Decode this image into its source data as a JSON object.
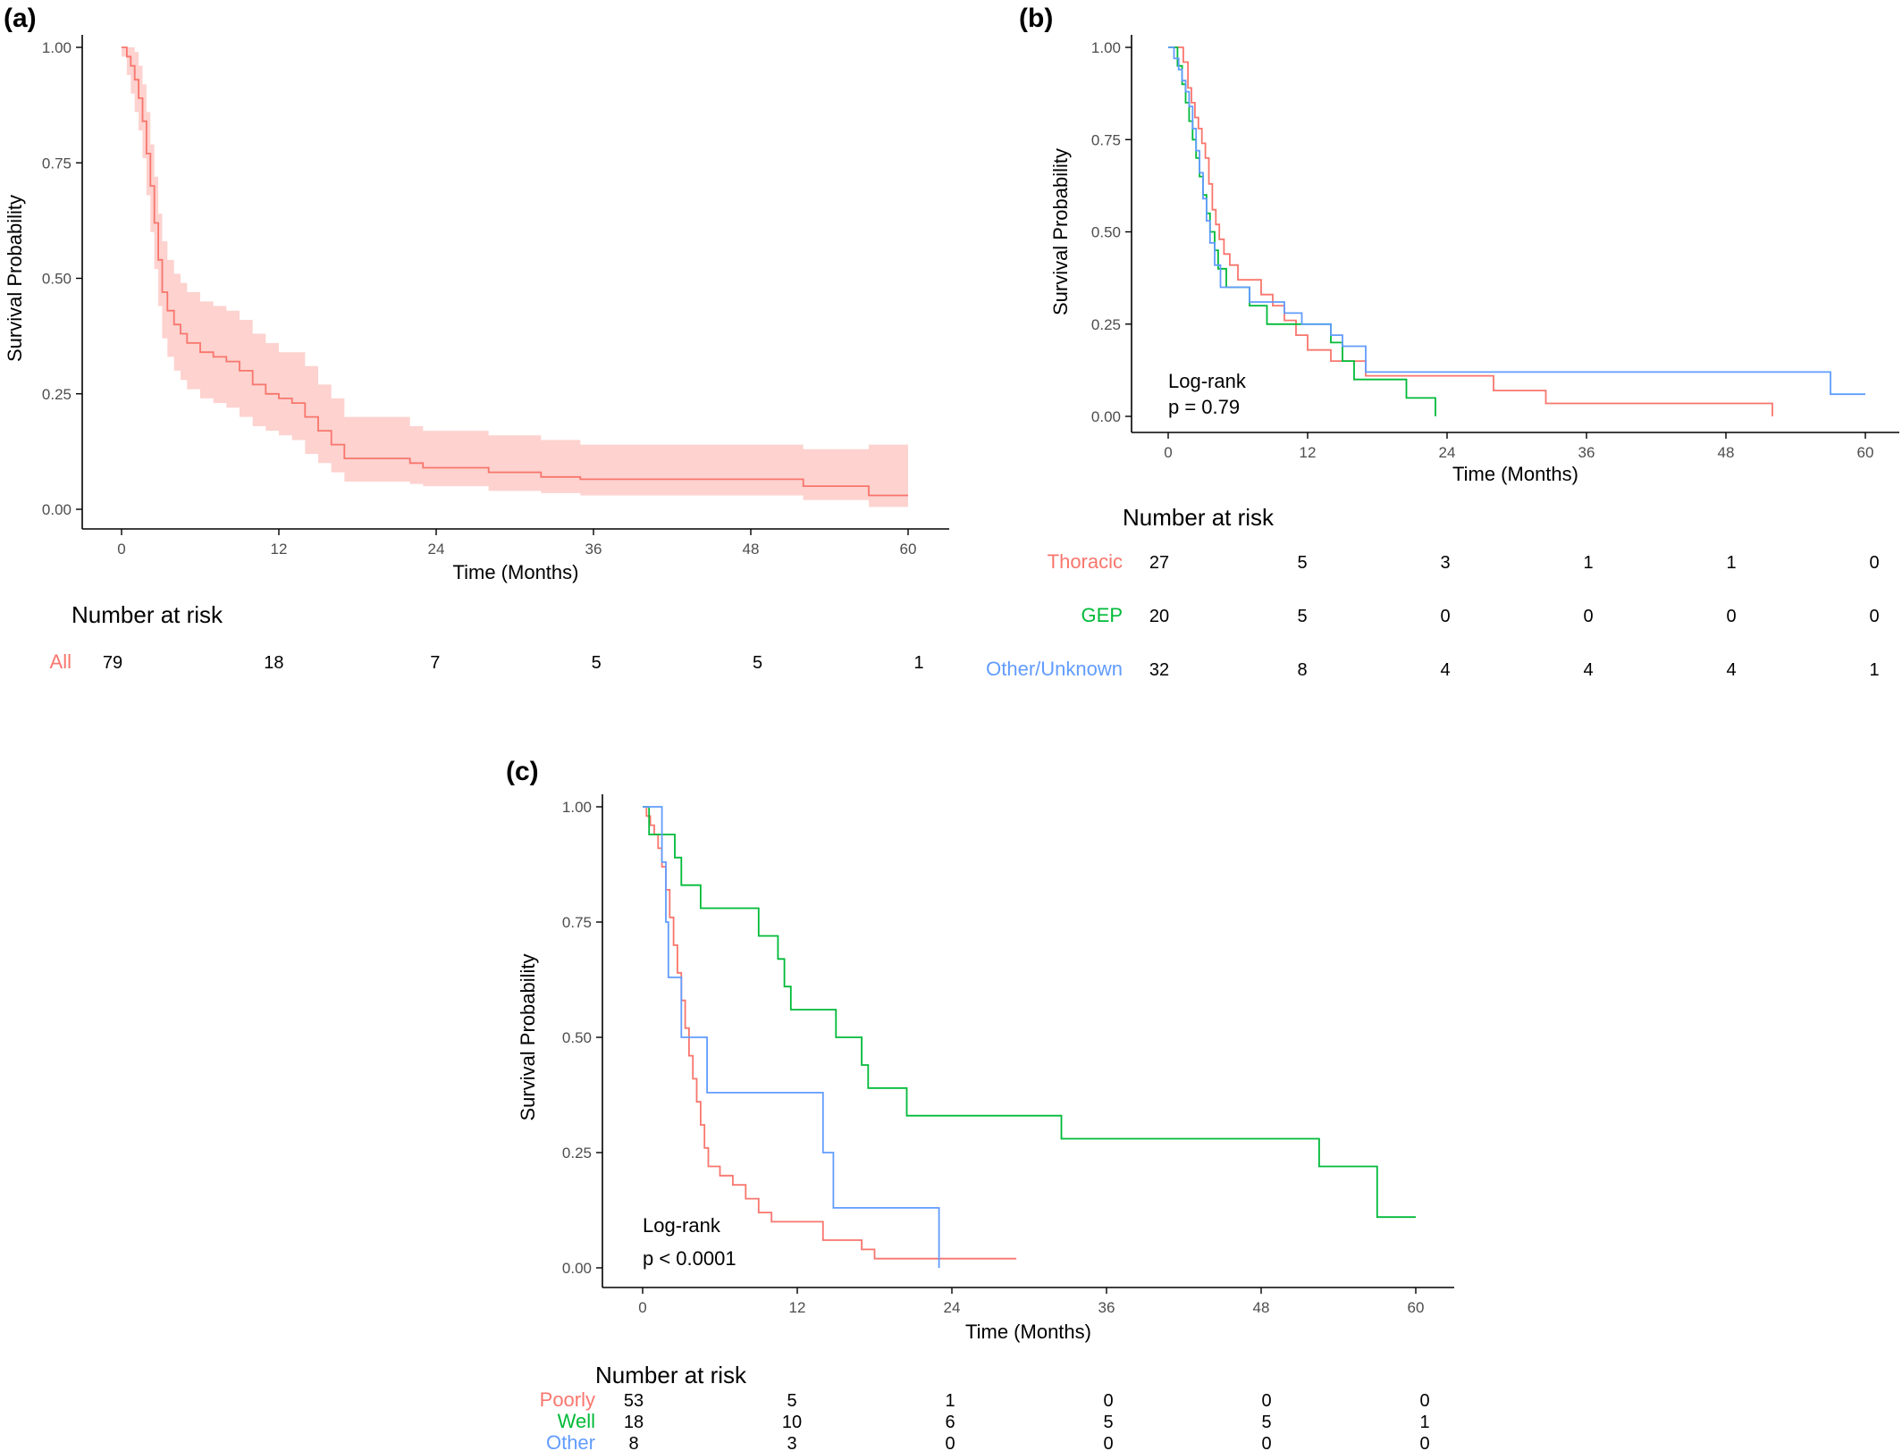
{
  "colors": {
    "red": "#f8766d",
    "green": "#00ba38",
    "blue": "#619cff",
    "ci_fill": "#fdd2cf",
    "axis": "#000000",
    "tick_text": "#4d4d4d"
  },
  "chart_data": [
    {
      "panel": "(a)",
      "type": "line",
      "subtype": "kaplan-meier step curve with confidence band",
      "xlabel": "Time (Months)",
      "ylabel": "Survival Probability",
      "xlim": [
        0,
        60
      ],
      "ylim": [
        0,
        1
      ],
      "x_ticks": [
        "0",
        "12",
        "24",
        "36",
        "48",
        "60"
      ],
      "y_ticks": [
        "0.00",
        "0.25",
        "0.50",
        "0.75",
        "1.00"
      ],
      "grid": false,
      "legend": "none",
      "series": [
        {
          "color_key": "red",
          "points": [
            [
              0,
              1.0
            ],
            [
              0.4,
              0.98
            ],
            [
              0.7,
              0.96
            ],
            [
              1.0,
              0.93
            ],
            [
              1.3,
              0.89
            ],
            [
              1.6,
              0.84
            ],
            [
              1.9,
              0.77
            ],
            [
              2.2,
              0.7
            ],
            [
              2.5,
              0.62
            ],
            [
              2.8,
              0.54
            ],
            [
              3.1,
              0.47
            ],
            [
              3.5,
              0.43
            ],
            [
              4.0,
              0.4
            ],
            [
              4.5,
              0.38
            ],
            [
              5.0,
              0.36
            ],
            [
              6.0,
              0.34
            ],
            [
              7.0,
              0.33
            ],
            [
              8.0,
              0.32
            ],
            [
              9.0,
              0.3
            ],
            [
              10.0,
              0.27
            ],
            [
              11.0,
              0.25
            ],
            [
              12.0,
              0.24
            ],
            [
              13.0,
              0.23
            ],
            [
              14.0,
              0.2
            ],
            [
              15.0,
              0.17
            ],
            [
              16.0,
              0.14
            ],
            [
              17.0,
              0.11
            ],
            [
              22.0,
              0.1
            ],
            [
              23.0,
              0.09
            ],
            [
              28.0,
              0.08
            ],
            [
              32.0,
              0.07
            ],
            [
              35.0,
              0.065
            ],
            [
              52.0,
              0.05
            ],
            [
              57.0,
              0.03
            ],
            [
              60.0,
              0.03
            ]
          ],
          "ci_lower": [
            [
              0,
              0.98
            ],
            [
              0.4,
              0.94
            ],
            [
              0.7,
              0.9
            ],
            [
              1.0,
              0.86
            ],
            [
              1.3,
              0.82
            ],
            [
              1.6,
              0.76
            ],
            [
              1.9,
              0.68
            ],
            [
              2.2,
              0.6
            ],
            [
              2.5,
              0.52
            ],
            [
              2.8,
              0.44
            ],
            [
              3.1,
              0.37
            ],
            [
              3.5,
              0.33
            ],
            [
              4.0,
              0.3
            ],
            [
              4.5,
              0.28
            ],
            [
              5.0,
              0.26
            ],
            [
              6.0,
              0.24
            ],
            [
              7.0,
              0.23
            ],
            [
              8.0,
              0.22
            ],
            [
              9.0,
              0.2
            ],
            [
              10.0,
              0.18
            ],
            [
              11.0,
              0.17
            ],
            [
              12.0,
              0.16
            ],
            [
              13.0,
              0.15
            ],
            [
              14.0,
              0.12
            ],
            [
              15.0,
              0.1
            ],
            [
              16.0,
              0.08
            ],
            [
              17.0,
              0.06
            ],
            [
              22.0,
              0.055
            ],
            [
              23.0,
              0.05
            ],
            [
              28.0,
              0.04
            ],
            [
              32.0,
              0.035
            ],
            [
              35.0,
              0.03
            ],
            [
              52.0,
              0.02
            ],
            [
              57.0,
              0.005
            ],
            [
              60.0,
              0.005
            ]
          ],
          "ci_upper": [
            [
              0,
              1.0
            ],
            [
              0.4,
              1.0
            ],
            [
              0.7,
              1.0
            ],
            [
              1.0,
              0.99
            ],
            [
              1.3,
              0.96
            ],
            [
              1.6,
              0.92
            ],
            [
              1.9,
              0.86
            ],
            [
              2.2,
              0.79
            ],
            [
              2.5,
              0.72
            ],
            [
              2.8,
              0.64
            ],
            [
              3.1,
              0.58
            ],
            [
              3.5,
              0.54
            ],
            [
              4.0,
              0.51
            ],
            [
              4.5,
              0.49
            ],
            [
              5.0,
              0.47
            ],
            [
              6.0,
              0.45
            ],
            [
              7.0,
              0.44
            ],
            [
              8.0,
              0.43
            ],
            [
              9.0,
              0.41
            ],
            [
              10.0,
              0.38
            ],
            [
              11.0,
              0.36
            ],
            [
              12.0,
              0.34
            ],
            [
              13.0,
              0.34
            ],
            [
              14.0,
              0.31
            ],
            [
              15.0,
              0.27
            ],
            [
              16.0,
              0.24
            ],
            [
              17.0,
              0.2
            ],
            [
              22.0,
              0.18
            ],
            [
              23.0,
              0.17
            ],
            [
              28.0,
              0.16
            ],
            [
              32.0,
              0.15
            ],
            [
              35.0,
              0.14
            ],
            [
              52.0,
              0.13
            ],
            [
              57.0,
              0.14
            ],
            [
              60.0,
              0.14
            ]
          ]
        }
      ],
      "risk_table": {
        "title": "Number at risk",
        "rows": [
          {
            "label": "All",
            "color_key": "red",
            "values": [
              "79",
              "18",
              "7",
              "5",
              "5",
              "1"
            ]
          }
        ]
      }
    },
    {
      "panel": "(b)",
      "type": "line",
      "subtype": "kaplan-meier step curves",
      "xlabel": "Time (Months)",
      "ylabel": "Survival Probability",
      "xlim": [
        0,
        60
      ],
      "ylim": [
        0,
        1
      ],
      "x_ticks": [
        "0",
        "12",
        "24",
        "36",
        "48",
        "60"
      ],
      "y_ticks": [
        "0.00",
        "0.25",
        "0.50",
        "0.75",
        "1.00"
      ],
      "grid": false,
      "legend": "none",
      "annotation": [
        "Log-rank",
        "p = 0.79"
      ],
      "series": [
        {
          "color_key": "red",
          "points": [
            [
              0,
              1.0
            ],
            [
              1.3,
              0.96
            ],
            [
              1.7,
              0.89
            ],
            [
              2.0,
              0.85
            ],
            [
              2.3,
              0.81
            ],
            [
              2.6,
              0.78
            ],
            [
              2.9,
              0.74
            ],
            [
              3.2,
              0.7
            ],
            [
              3.5,
              0.63
            ],
            [
              3.8,
              0.56
            ],
            [
              4.1,
              0.52
            ],
            [
              4.4,
              0.48
            ],
            [
              4.8,
              0.44
            ],
            [
              5.3,
              0.41
            ],
            [
              6.0,
              0.37
            ],
            [
              8.0,
              0.33
            ],
            [
              9.0,
              0.3
            ],
            [
              10.0,
              0.26
            ],
            [
              11.0,
              0.22
            ],
            [
              12.0,
              0.18
            ],
            [
              14.0,
              0.15
            ],
            [
              17.0,
              0.11
            ],
            [
              28.0,
              0.07
            ],
            [
              32.5,
              0.035
            ],
            [
              52.0,
              0.0
            ]
          ]
        },
        {
          "color_key": "green",
          "points": [
            [
              0,
              1.0
            ],
            [
              0.8,
              0.95
            ],
            [
              1.2,
              0.9
            ],
            [
              1.5,
              0.85
            ],
            [
              1.8,
              0.8
            ],
            [
              2.1,
              0.75
            ],
            [
              2.4,
              0.7
            ],
            [
              2.7,
              0.65
            ],
            [
              3.0,
              0.6
            ],
            [
              3.3,
              0.55
            ],
            [
              3.6,
              0.5
            ],
            [
              4.0,
              0.45
            ],
            [
              4.3,
              0.4
            ],
            [
              5.0,
              0.35
            ],
            [
              7.0,
              0.3
            ],
            [
              8.5,
              0.25
            ],
            [
              14.0,
              0.2
            ],
            [
              15.0,
              0.15
            ],
            [
              16.0,
              0.1
            ],
            [
              20.5,
              0.05
            ],
            [
              23.0,
              0.0
            ]
          ]
        },
        {
          "color_key": "blue",
          "points": [
            [
              0,
              1.0
            ],
            [
              0.5,
              0.97
            ],
            [
              0.9,
              0.94
            ],
            [
              1.2,
              0.91
            ],
            [
              1.5,
              0.88
            ],
            [
              1.8,
              0.84
            ],
            [
              2.1,
              0.78
            ],
            [
              2.4,
              0.72
            ],
            [
              2.7,
              0.66
            ],
            [
              3.0,
              0.59
            ],
            [
              3.3,
              0.53
            ],
            [
              3.6,
              0.47
            ],
            [
              4.0,
              0.41
            ],
            [
              4.5,
              0.35
            ],
            [
              7.0,
              0.31
            ],
            [
              10.0,
              0.28
            ],
            [
              11.5,
              0.25
            ],
            [
              14.0,
              0.22
            ],
            [
              15.0,
              0.19
            ],
            [
              17.0,
              0.12
            ],
            [
              57.0,
              0.06
            ],
            [
              60.0,
              0.06
            ]
          ]
        }
      ],
      "risk_table": {
        "title": "Number at risk",
        "rows": [
          {
            "label": "Thoracic",
            "color_key": "red",
            "values": [
              "27",
              "5",
              "3",
              "1",
              "1",
              "0"
            ]
          },
          {
            "label": "GEP",
            "color_key": "green",
            "values": [
              "20",
              "5",
              "0",
              "0",
              "0",
              "0"
            ]
          },
          {
            "label": "Other/Unknown",
            "color_key": "blue",
            "values": [
              "32",
              "8",
              "4",
              "4",
              "4",
              "1"
            ]
          }
        ]
      }
    },
    {
      "panel": "(c)",
      "type": "line",
      "subtype": "kaplan-meier step curves",
      "xlabel": "Time (Months)",
      "ylabel": "Survival Probability",
      "xlim": [
        0,
        60
      ],
      "ylim": [
        0,
        1
      ],
      "x_ticks": [
        "0",
        "12",
        "24",
        "36",
        "48",
        "60"
      ],
      "y_ticks": [
        "0.00",
        "0.25",
        "0.50",
        "0.75",
        "1.00"
      ],
      "grid": false,
      "legend": "none",
      "annotation": [
        "Log-rank",
        "p < 0.0001"
      ],
      "series": [
        {
          "color_key": "red",
          "points": [
            [
              0,
              1.0
            ],
            [
              0.3,
              0.98
            ],
            [
              0.6,
              0.96
            ],
            [
              0.9,
              0.94
            ],
            [
              1.2,
              0.91
            ],
            [
              1.5,
              0.87
            ],
            [
              1.8,
              0.82
            ],
            [
              2.1,
              0.76
            ],
            [
              2.4,
              0.7
            ],
            [
              2.7,
              0.64
            ],
            [
              3.0,
              0.58
            ],
            [
              3.3,
              0.52
            ],
            [
              3.6,
              0.46
            ],
            [
              3.9,
              0.41
            ],
            [
              4.2,
              0.36
            ],
            [
              4.5,
              0.31
            ],
            [
              4.8,
              0.26
            ],
            [
              5.1,
              0.22
            ],
            [
              6.0,
              0.2
            ],
            [
              7.0,
              0.18
            ],
            [
              8.0,
              0.15
            ],
            [
              9.0,
              0.12
            ],
            [
              10.0,
              0.1
            ],
            [
              14.0,
              0.06
            ],
            [
              17.0,
              0.04
            ],
            [
              18.0,
              0.02
            ],
            [
              29.0,
              0.02
            ]
          ]
        },
        {
          "color_key": "green",
          "points": [
            [
              0,
              1.0
            ],
            [
              0.5,
              0.94
            ],
            [
              2.5,
              0.89
            ],
            [
              3.0,
              0.83
            ],
            [
              4.5,
              0.78
            ],
            [
              9.0,
              0.72
            ],
            [
              10.5,
              0.67
            ],
            [
              11.0,
              0.61
            ],
            [
              11.5,
              0.56
            ],
            [
              15.0,
              0.5
            ],
            [
              17.0,
              0.44
            ],
            [
              17.5,
              0.39
            ],
            [
              20.5,
              0.33
            ],
            [
              32.5,
              0.28
            ],
            [
              52.5,
              0.22
            ],
            [
              57.0,
              0.11
            ],
            [
              60.0,
              0.11
            ]
          ]
        },
        {
          "color_key": "blue",
          "points": [
            [
              0,
              1.0
            ],
            [
              1.5,
              0.88
            ],
            [
              1.8,
              0.75
            ],
            [
              2.0,
              0.63
            ],
            [
              3.0,
              0.5
            ],
            [
              5.0,
              0.38
            ],
            [
              14.0,
              0.25
            ],
            [
              14.8,
              0.13
            ],
            [
              23.0,
              0.0
            ]
          ]
        }
      ],
      "risk_table": {
        "title": "Number at risk",
        "rows": [
          {
            "label": "Poorly",
            "color_key": "red",
            "values": [
              "53",
              "5",
              "1",
              "0",
              "0",
              "0"
            ]
          },
          {
            "label": "Well",
            "color_key": "green",
            "values": [
              "18",
              "10",
              "6",
              "5",
              "5",
              "1"
            ]
          },
          {
            "label": "Other",
            "color_key": "blue",
            "values": [
              "8",
              "3",
              "0",
              "0",
              "0",
              "0"
            ]
          }
        ]
      }
    }
  ]
}
